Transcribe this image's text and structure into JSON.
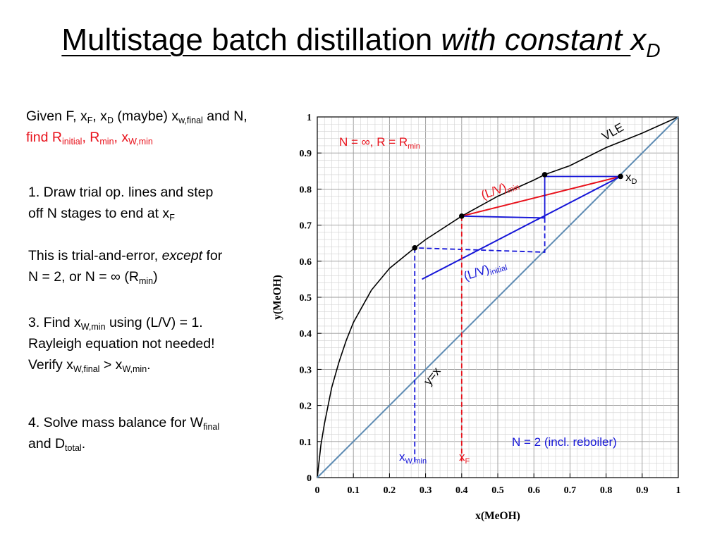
{
  "title": {
    "main": "Multistage batch distillation ",
    "italic": "with constant ",
    "var": "x",
    "var_sub": "D"
  },
  "text": {
    "given_1a": "Given F, x",
    "given_1a_sub": "F",
    "given_1b": ", x",
    "given_1b_sub": "D",
    "given_1c": " (maybe) x",
    "given_1c_sub": "w,final",
    "given_1d": " and N,",
    "given_2a": "find R",
    "given_2a_sub": "initial",
    "given_2b": ", R",
    "given_2b_sub": "min",
    "given_2c": ", x",
    "given_2c_sub": "W,min",
    "step1_line1": "1. Draw trial op. lines and step",
    "step1_line2": "off N stages to end at x",
    "step1_line2_sub": "F",
    "trial_line1a": "This is trial-and-error, ",
    "trial_line1b": "except",
    "trial_line1c": " for",
    "trial_line2a": "N = 2, or N = ∞ (R",
    "trial_line2a_sub": "min",
    "trial_line2b": ")",
    "step3_line1a": "3. Find x",
    "step3_line1a_sub": "W,min",
    "step3_line1b": " using (L/V) = 1.",
    "step3_line2": "Rayleigh equation not needed!",
    "step3_line3a": "Verify x",
    "step3_line3a_sub": "W,final",
    "step3_line3b": " > x",
    "step3_line3b_sub": "W,min",
    "step3_line3c": ".",
    "step4_line1a": "4. Solve mass balance for W",
    "step4_line1a_sub": "final",
    "step4_line2a": "and D",
    "step4_line2a_sub": "total",
    "step4_line2b": "."
  },
  "chart_data": {
    "type": "line",
    "xlabel": "x(MeOH)",
    "ylabel": "y(MeOH)",
    "xlim": [
      0,
      1
    ],
    "ylim": [
      0,
      1
    ],
    "grid": true,
    "x_ticks": [
      "0",
      "0.1",
      "0.2",
      "0.3",
      "0.4",
      "0.5",
      "0.6",
      "0.7",
      "0.8",
      "0.9",
      "1"
    ],
    "y_ticks": [
      "0",
      "0.1",
      "0.2",
      "0.3",
      "0.4",
      "0.5",
      "0.6",
      "0.7",
      "0.8",
      "0.9",
      "1"
    ],
    "series": [
      {
        "name": "VLE",
        "color": "#000000",
        "points": [
          [
            0,
            0
          ],
          [
            0.01,
            0.09
          ],
          [
            0.02,
            0.15
          ],
          [
            0.04,
            0.25
          ],
          [
            0.06,
            0.32
          ],
          [
            0.08,
            0.38
          ],
          [
            0.1,
            0.43
          ],
          [
            0.15,
            0.52
          ],
          [
            0.2,
            0.58
          ],
          [
            0.27,
            0.637
          ],
          [
            0.3,
            0.66
          ],
          [
            0.4,
            0.725
          ],
          [
            0.5,
            0.78
          ],
          [
            0.6,
            0.825
          ],
          [
            0.63,
            0.84
          ],
          [
            0.7,
            0.865
          ],
          [
            0.8,
            0.915
          ],
          [
            0.9,
            0.955
          ],
          [
            1.0,
            1.0
          ]
        ]
      },
      {
        "name": "y=x",
        "color": "#5b8ab2",
        "points": [
          [
            0,
            0
          ],
          [
            1,
            1
          ]
        ]
      }
    ],
    "operating_lines": [
      {
        "name": "(L/V)min",
        "color": "#e8101a",
        "points": [
          [
            0.4,
            0.725
          ],
          [
            0.84,
            0.835
          ]
        ]
      },
      {
        "name": "(L/V)initial",
        "color": "#1515d8",
        "points": [
          [
            0.29,
            0.55
          ],
          [
            0.84,
            0.835
          ]
        ]
      }
    ],
    "stage_steps": [
      {
        "style": "solid",
        "color": "#1515d8",
        "points": [
          [
            0.84,
            0.835
          ],
          [
            0.63,
            0.835
          ],
          [
            0.63,
            0.72
          ],
          [
            0.4,
            0.725
          ]
        ]
      },
      {
        "style": "dashed",
        "color": "#1515d8",
        "points": [
          [
            0.63,
            0.72
          ],
          [
            0.63,
            0.625
          ],
          [
            0.27,
            0.637
          ]
        ]
      }
    ],
    "vertical_markers": [
      {
        "label": "x",
        "label_sub": "W,min",
        "x": 0.27,
        "y_top": 0.637,
        "color": "#1515d8"
      },
      {
        "label": "x",
        "label_sub": "F",
        "x": 0.4,
        "y_top": 0.725,
        "color": "#e8101a"
      }
    ],
    "points": [
      {
        "x": 0.27,
        "y": 0.637
      },
      {
        "x": 0.4,
        "y": 0.725
      },
      {
        "x": 0.63,
        "y": 0.84
      },
      {
        "x": 0.84,
        "y": 0.835
      }
    ],
    "annotations": {
      "vle": "VLE",
      "yx": "y=x",
      "n_inf_a": "N = ∞, R = R",
      "n_inf_sub": "min",
      "lv_min": "(L/V)",
      "lv_min_sub": "min",
      "lv_initial": "(L/V)",
      "lv_initial_sub": "initial",
      "xd": "x",
      "xd_sub": "D",
      "n2": "N = 2 (incl. reboiler)"
    }
  },
  "colors": {
    "red": "#e8101a",
    "blue": "#1515d8",
    "steel": "#5b8ab2"
  }
}
